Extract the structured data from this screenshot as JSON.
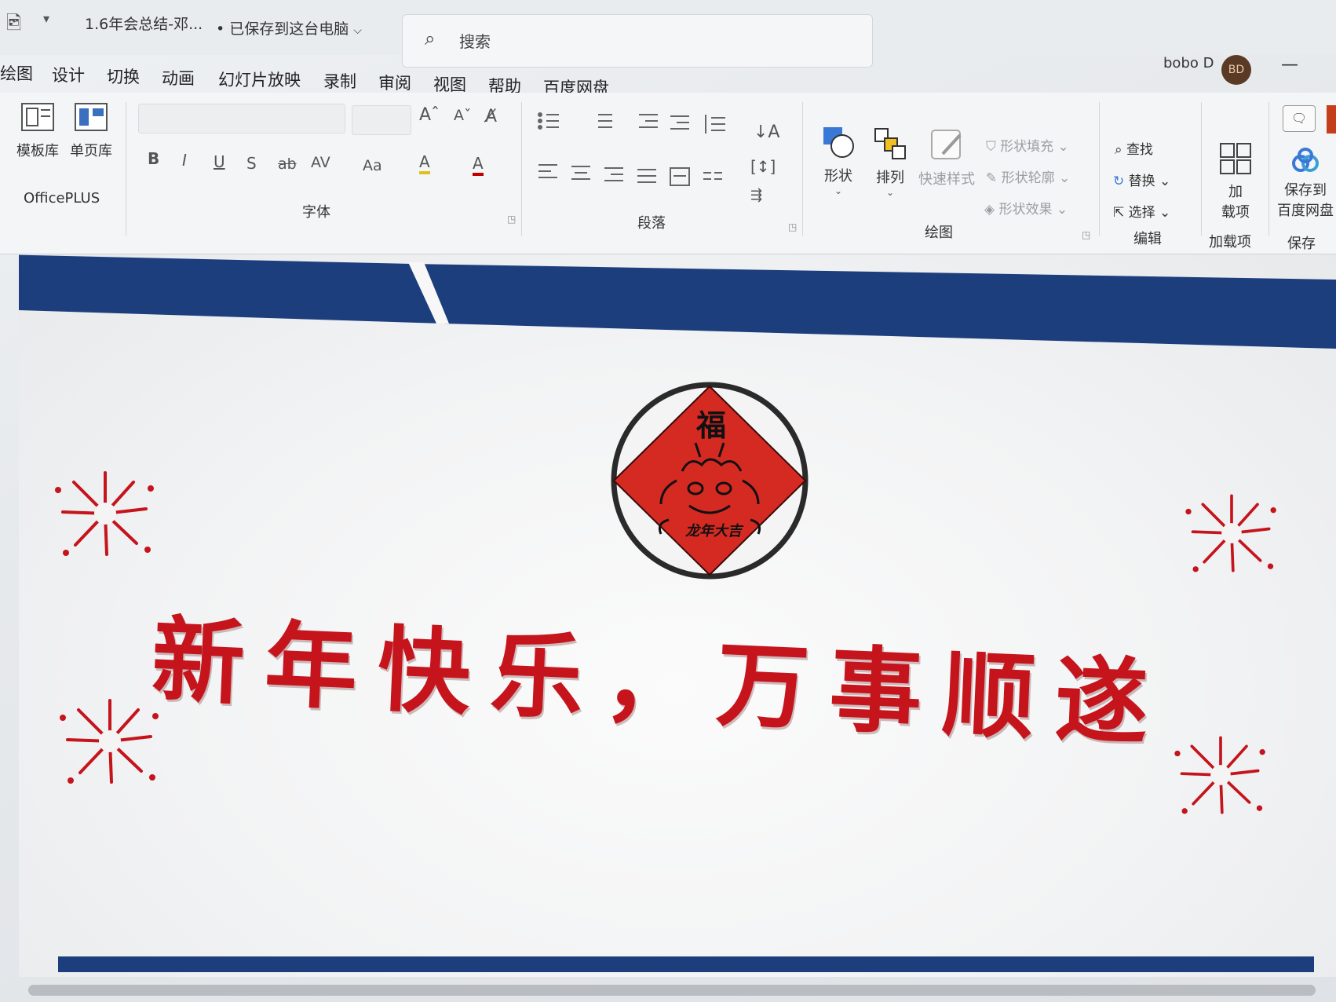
{
  "titlebar": {
    "app_icon": "powerpoint-icon",
    "qat_icon": "customize-qat-icon",
    "filename": "1.6年会总结-邓...",
    "save_status": "• 已保存到这台电脑",
    "search_placeholder": "搜索",
    "user_name": "bobo D",
    "user_initials": "BD",
    "minimize_glyph": "—"
  },
  "tabs": [
    "绘图",
    "设计",
    "切换",
    "动画",
    "幻灯片放映",
    "录制",
    "审阅",
    "视图",
    "帮助",
    "百度网盘"
  ],
  "ribbon": {
    "officeplus": {
      "label": "OfficePLUS",
      "buttons": [
        "模板库",
        "单页库"
      ]
    },
    "font": {
      "label": "字体",
      "buttons": [
        "B",
        "I",
        "U",
        "S",
        "ab",
        "AV",
        "Aa",
        "A",
        "A",
        "A"
      ]
    },
    "paragraph": {
      "label": "段落"
    },
    "drawing": {
      "label": "绘图",
      "shapes": "形状",
      "arrange": "排列",
      "quick_styles": "快速样式",
      "fill": "形状填充",
      "outline": "形状轮廓",
      "effects": "形状效果"
    },
    "editing": {
      "label": "编辑",
      "find": "查找",
      "replace": "替换",
      "select": "选择"
    },
    "addins": {
      "label": "加载项",
      "button_line1": "加",
      "button_line2": "载项"
    },
    "save": {
      "label": "保存",
      "button_line1": "保存到",
      "button_line2": "百度网盘"
    }
  },
  "slide": {
    "emblem_char": "福",
    "emblem_caption": "龙年大吉",
    "greeting": "新年快乐，万事顺遂"
  },
  "colors": {
    "banner_navy": "#1d3e7d",
    "greeting_red": "#c5141c",
    "emblem_red": "#d42a22"
  }
}
